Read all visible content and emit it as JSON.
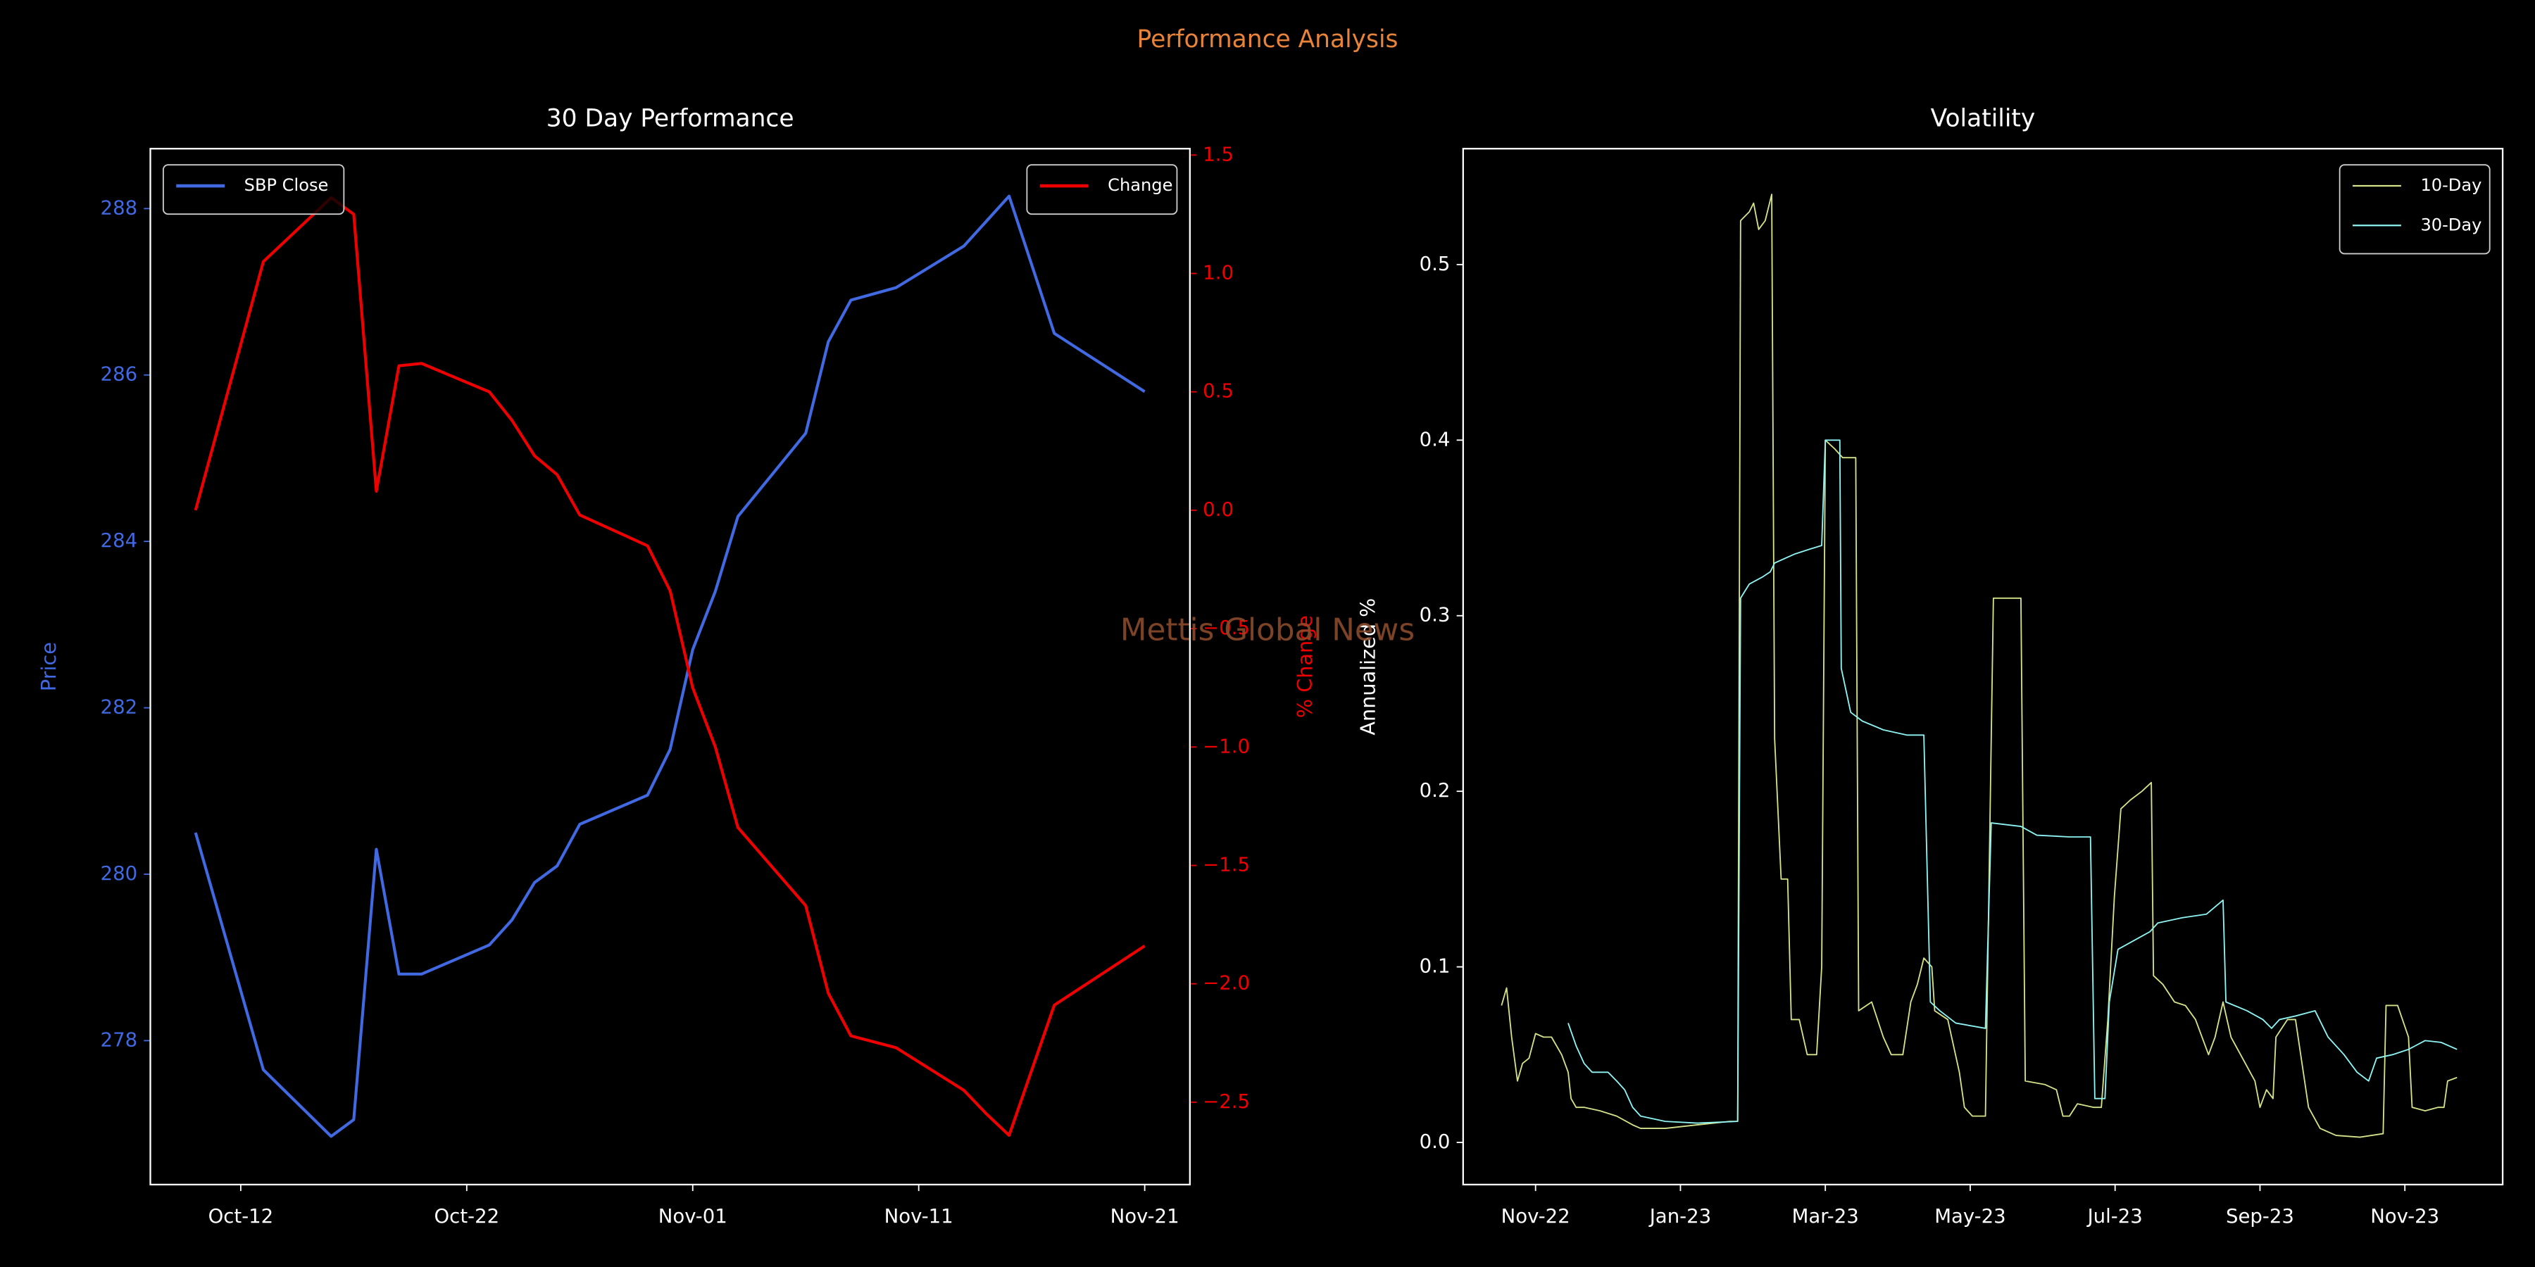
{
  "title": "Performance Analysis",
  "watermark": "Mettis Global News",
  "chart_data": [
    {
      "type": "line",
      "title": "30 Day Performance",
      "x": [
        "Oct-10",
        "Oct-13",
        "Oct-16",
        "Oct-17",
        "Oct-18",
        "Oct-19",
        "Oct-20",
        "Oct-23",
        "Oct-24",
        "Oct-25",
        "Oct-26",
        "Oct-27",
        "Oct-30",
        "Oct-31",
        "Nov-01",
        "Nov-02",
        "Nov-03",
        "Nov-06",
        "Nov-07",
        "Nov-08",
        "Nov-10",
        "Nov-13",
        "Nov-14",
        "Nov-15",
        "Nov-17",
        "Nov-21"
      ],
      "xlim": [
        "Oct-08",
        "Nov-23"
      ],
      "xticks": [
        "Oct-12",
        "Oct-22",
        "Nov-01",
        "Nov-11",
        "Nov-21"
      ],
      "ylabel": "Price",
      "y2label": "% Change",
      "ylim": [
        276.27,
        288.72
      ],
      "yticks": [
        278,
        280,
        282,
        284,
        286,
        288
      ],
      "y2lim": [
        -2.848,
        1.527
      ],
      "y2ticks": [
        1.5,
        {
          "value": 1,
          "label": "1.0"
        },
        0.5,
        {
          "value": 0,
          "label": "0.0"
        },
        {
          "value": -0.5,
          "label": "−0.5"
        },
        {
          "value": -1,
          "label": "−1.0"
        },
        {
          "value": -1.5,
          "label": "−1.5"
        },
        {
          "value": -2,
          "label": "−2.0"
        },
        {
          "value": -2.5,
          "label": "−2.5"
        }
      ],
      "series": [
        {
          "name": "SBP Close",
          "color": "#4169e1",
          "axis": "y",
          "legend_loc": "upper left",
          "values": [
            280.5,
            277.65,
            276.85,
            277.05,
            280.3,
            278.8,
            278.8,
            279.15,
            279.45,
            279.9,
            280.1,
            280.6,
            280.95,
            281.5,
            282.7,
            283.4,
            284.3,
            285.3,
            286.4,
            286.9,
            287.05,
            287.55,
            287.85,
            288.15,
            286.5,
            285.8
          ]
        },
        {
          "name": "Change",
          "color": "#ee0000",
          "axis": "y2",
          "legend_loc": "upper right",
          "values": [
            0.0,
            1.05,
            1.32,
            1.25,
            0.08,
            0.61,
            0.62,
            0.5,
            0.38,
            0.23,
            0.15,
            -0.02,
            -0.15,
            -0.34,
            -0.75,
            -1.0,
            -1.34,
            -1.67,
            -2.04,
            -2.22,
            -2.27,
            -2.45,
            -2.55,
            -2.64,
            -2.09,
            -1.84
          ]
        }
      ]
    },
    {
      "type": "line",
      "title": "Volatility",
      "ylabel": "Annualized %",
      "xlim": [
        -1.0,
        13.35
      ],
      "xticks": [
        {
          "value": 0,
          "label": "Nov-22"
        },
        {
          "value": 2,
          "label": "Jan-23"
        },
        {
          "value": 4,
          "label": "Mar-23"
        },
        {
          "value": 6,
          "label": "May-23"
        },
        {
          "value": 8,
          "label": "Jul-23"
        },
        {
          "value": 10,
          "label": "Sep-23"
        },
        {
          "value": 12,
          "label": "Nov-23"
        }
      ],
      "ylim": [
        -0.024,
        0.566
      ],
      "yticks": [
        {
          "value": 0,
          "label": "0.0"
        },
        0.1,
        0.2,
        0.3,
        0.4,
        0.5
      ],
      "series": [
        {
          "name": "10-Day",
          "color": "#d4e38a",
          "legend_loc": "upper right",
          "x": [
            -0.47,
            -0.4,
            -0.33,
            -0.25,
            -0.18,
            -0.09,
            0,
            0.11,
            0.22,
            0.36,
            0.45,
            0.49,
            0.56,
            0.67,
            0.89,
            1.12,
            1.34,
            1.45,
            1.79,
            2.23,
            2.68,
            2.79,
            2.83,
            2.95,
            3.01,
            3.08,
            3.17,
            3.26,
            3.3,
            3.39,
            3.48,
            3.53,
            3.64,
            3.75,
            3.88,
            3.95,
            4.0,
            4.13,
            4.24,
            4.42,
            4.46,
            4.64,
            4.8,
            4.91,
            5.07,
            5.18,
            5.27,
            5.36,
            5.47,
            5.51,
            5.69,
            5.85,
            5.92,
            6.03,
            6.21,
            6.32,
            6.7,
            6.76,
            7.03,
            7.19,
            7.28,
            7.37,
            7.48,
            7.7,
            7.81,
            7.9,
            7.99,
            8.08,
            8.21,
            8.37,
            8.5,
            8.53,
            8.66,
            8.82,
            8.97,
            9.11,
            9.2,
            9.29,
            9.38,
            9.49,
            9.6,
            9.93,
            10.0,
            10.09,
            10.18,
            10.22,
            10.38,
            10.49,
            10.67,
            10.83,
            11.05,
            11.38,
            11.7,
            11.74,
            11.9,
            12.05,
            12.1,
            12.28,
            12.46,
            12.54,
            12.59,
            12.72
          ],
          "values": [
            0.078,
            0.088,
            0.06,
            0.035,
            0.045,
            0.048,
            0.062,
            0.06,
            0.06,
            0.05,
            0.04,
            0.025,
            0.02,
            0.02,
            0.018,
            0.015,
            0.01,
            0.008,
            0.008,
            0.01,
            0.012,
            0.012,
            0.525,
            0.53,
            0.535,
            0.52,
            0.525,
            0.54,
            0.23,
            0.15,
            0.15,
            0.07,
            0.07,
            0.05,
            0.05,
            0.1,
            0.4,
            0.395,
            0.39,
            0.39,
            0.075,
            0.08,
            0.06,
            0.05,
            0.05,
            0.08,
            0.09,
            0.105,
            0.1,
            0.075,
            0.07,
            0.04,
            0.02,
            0.015,
            0.015,
            0.31,
            0.31,
            0.035,
            0.033,
            0.03,
            0.015,
            0.015,
            0.022,
            0.02,
            0.02,
            0.07,
            0.14,
            0.19,
            0.195,
            0.2,
            0.205,
            0.095,
            0.09,
            0.08,
            0.078,
            0.07,
            0.06,
            0.05,
            0.06,
            0.08,
            0.06,
            0.035,
            0.02,
            0.03,
            0.025,
            0.06,
            0.07,
            0.07,
            0.02,
            0.008,
            0.004,
            0.003,
            0.005,
            0.078,
            0.078,
            0.06,
            0.02,
            0.018,
            0.02,
            0.02,
            0.035,
            0.037
          ]
        },
        {
          "name": "30-Day",
          "color": "#8ff4f4",
          "legend_loc": "upper right",
          "x": [
            0.45,
            0.56,
            0.67,
            0.78,
            1.0,
            1.12,
            1.23,
            1.34,
            1.45,
            1.79,
            2.23,
            2.79,
            2.83,
            2.95,
            3.13,
            3.24,
            3.3,
            3.57,
            3.79,
            3.95,
            4.0,
            4.2,
            4.22,
            4.35,
            4.51,
            4.8,
            5.13,
            5.36,
            5.45,
            5.58,
            5.8,
            6.21,
            6.29,
            6.7,
            6.92,
            7.37,
            7.66,
            7.72,
            7.86,
            7.92,
            8.04,
            8.26,
            8.48,
            8.59,
            8.93,
            9.26,
            9.49,
            9.53,
            9.82,
            10.04,
            10.16,
            10.27,
            10.49,
            10.76,
            10.94,
            11.16,
            11.34,
            11.5,
            11.61,
            11.83,
            12.05,
            12.28,
            12.5,
            12.72
          ],
          "values": [
            0.068,
            0.055,
            0.045,
            0.04,
            0.04,
            0.035,
            0.03,
            0.02,
            0.015,
            0.012,
            0.011,
            0.012,
            0.31,
            0.318,
            0.322,
            0.325,
            0.33,
            0.335,
            0.338,
            0.34,
            0.4,
            0.4,
            0.27,
            0.245,
            0.24,
            0.235,
            0.232,
            0.232,
            0.08,
            0.075,
            0.068,
            0.065,
            0.182,
            0.18,
            0.175,
            0.174,
            0.174,
            0.025,
            0.025,
            0.08,
            0.11,
            0.115,
            0.12,
            0.125,
            0.128,
            0.13,
            0.138,
            0.08,
            0.075,
            0.07,
            0.065,
            0.07,
            0.072,
            0.075,
            0.06,
            0.05,
            0.04,
            0.035,
            0.048,
            0.05,
            0.053,
            0.058,
            0.057,
            0.053
          ]
        }
      ]
    }
  ]
}
